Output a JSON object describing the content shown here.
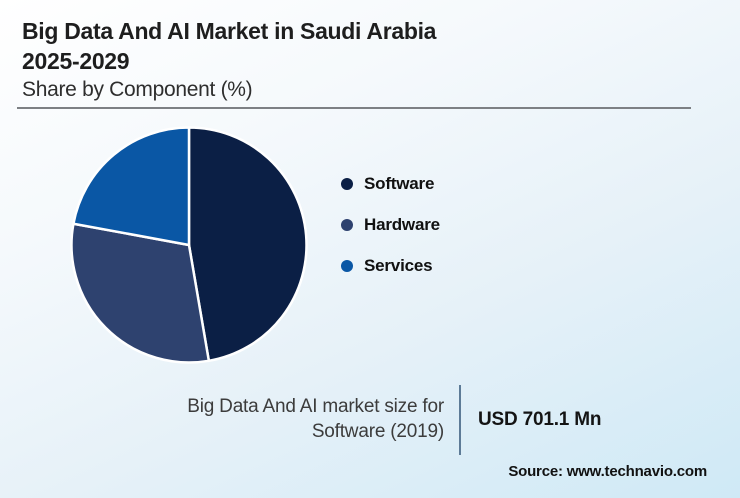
{
  "header": {
    "title_line1": "Big Data And AI Market in Saudi Arabia",
    "title_line2": "2025-2029",
    "subtitle": "Share by Component (%)"
  },
  "chart_data": {
    "type": "pie",
    "title": "Big Data And AI Market in Saudi Arabia 2025-2029",
    "subtitle": "Share by Component (%)",
    "legend_position": "right",
    "start_angle_deg": 0,
    "direction": "clockwise",
    "slices": [
      {
        "label": "Software",
        "value_pct": 47.3,
        "color": "#0b1f45"
      },
      {
        "label": "Hardware",
        "value_pct": 30.6,
        "color": "#2e426f"
      },
      {
        "label": "Services",
        "value_pct": 22.1,
        "color": "#0a57a5"
      }
    ]
  },
  "stat": {
    "label_line1": "Big Data And AI market size for",
    "label_line2": "Software (2019)",
    "value": "USD 701.1 Mn"
  },
  "source": {
    "label": "Source: www.technavio.com"
  },
  "colors": {
    "background_top": "#ffffff",
    "background_bottom": "#cfe9f6",
    "title_text": "#1e1e1e",
    "header_rule": "#7d8084",
    "stat_divider": "#5d7b97",
    "slice_gap_stroke": "#ffffff"
  }
}
